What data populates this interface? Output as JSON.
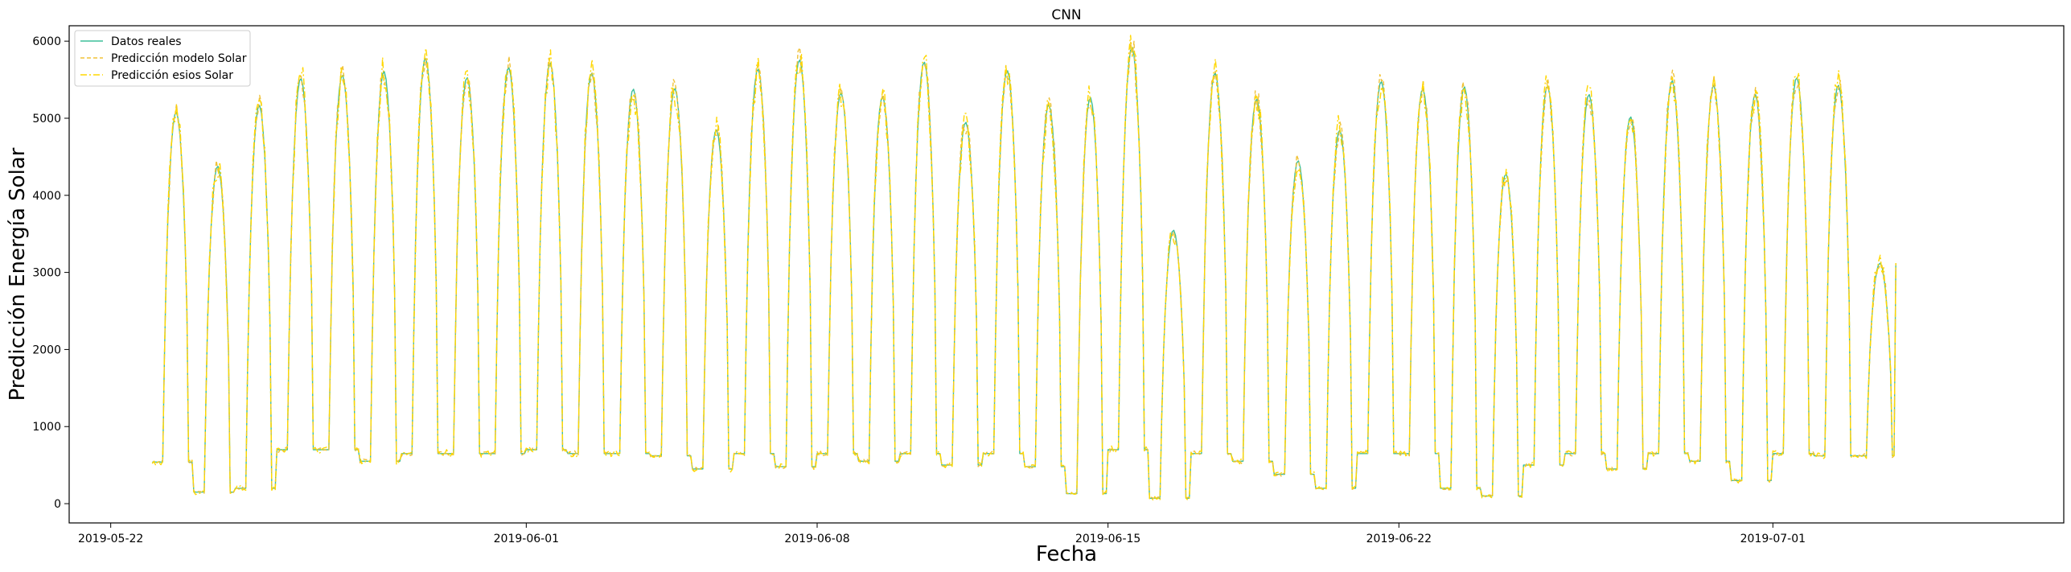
{
  "chart_data": {
    "type": "line",
    "title": "CNN",
    "xlabel": "Fecha",
    "ylabel": "Predicción Energía Solar",
    "x_start": "2019-05-23T00:00",
    "x_end": "2019-07-03T23:00",
    "xlim": [
      "2019-05-21",
      "2019-07-08"
    ],
    "ylim": [
      -250,
      6200
    ],
    "x_ticks": [
      "2019-05-22",
      "2019-06-01",
      "2019-06-08",
      "2019-06-15",
      "2019-06-22",
      "2019-07-01"
    ],
    "y_ticks": [
      0,
      1000,
      2000,
      3000,
      4000,
      5000,
      6000
    ],
    "legend_position": "top-left",
    "grid": false,
    "daily_peaks": [
      5080,
      4380,
      5170,
      5520,
      5560,
      5610,
      5780,
      5530,
      5660,
      5720,
      5590,
      5380,
      5390,
      4850,
      5640,
      5760,
      5330,
      5280,
      5730,
      4950,
      5620,
      5180,
      5270,
      5920,
      3550,
      5590,
      5250,
      4450,
      4850,
      5480,
      5380,
      5410,
      4280,
      5420,
      5310,
      5020,
      5490,
      5430,
      5310,
      5530,
      5430,
      3120
    ],
    "night_levels": [
      540,
      150,
      200,
      700,
      700,
      550,
      650,
      650,
      650,
      700,
      650,
      650,
      620,
      450,
      650,
      480,
      650,
      550,
      650,
      500,
      650,
      480,
      130,
      700,
      70,
      650,
      550,
      380,
      200,
      650,
      650,
      200,
      100,
      500,
      650,
      450,
      650,
      550,
      300,
      650,
      620,
      620
    ],
    "series": [
      {
        "name": "Datos reales",
        "color": "#3dbf9a",
        "style": "solid"
      },
      {
        "name": "Predicción modelo Solar",
        "color": "#f0c238",
        "style": "dashed"
      },
      {
        "name": "Predicción esios Solar",
        "color": "#ffd700",
        "style": "dashdot"
      }
    ]
  }
}
